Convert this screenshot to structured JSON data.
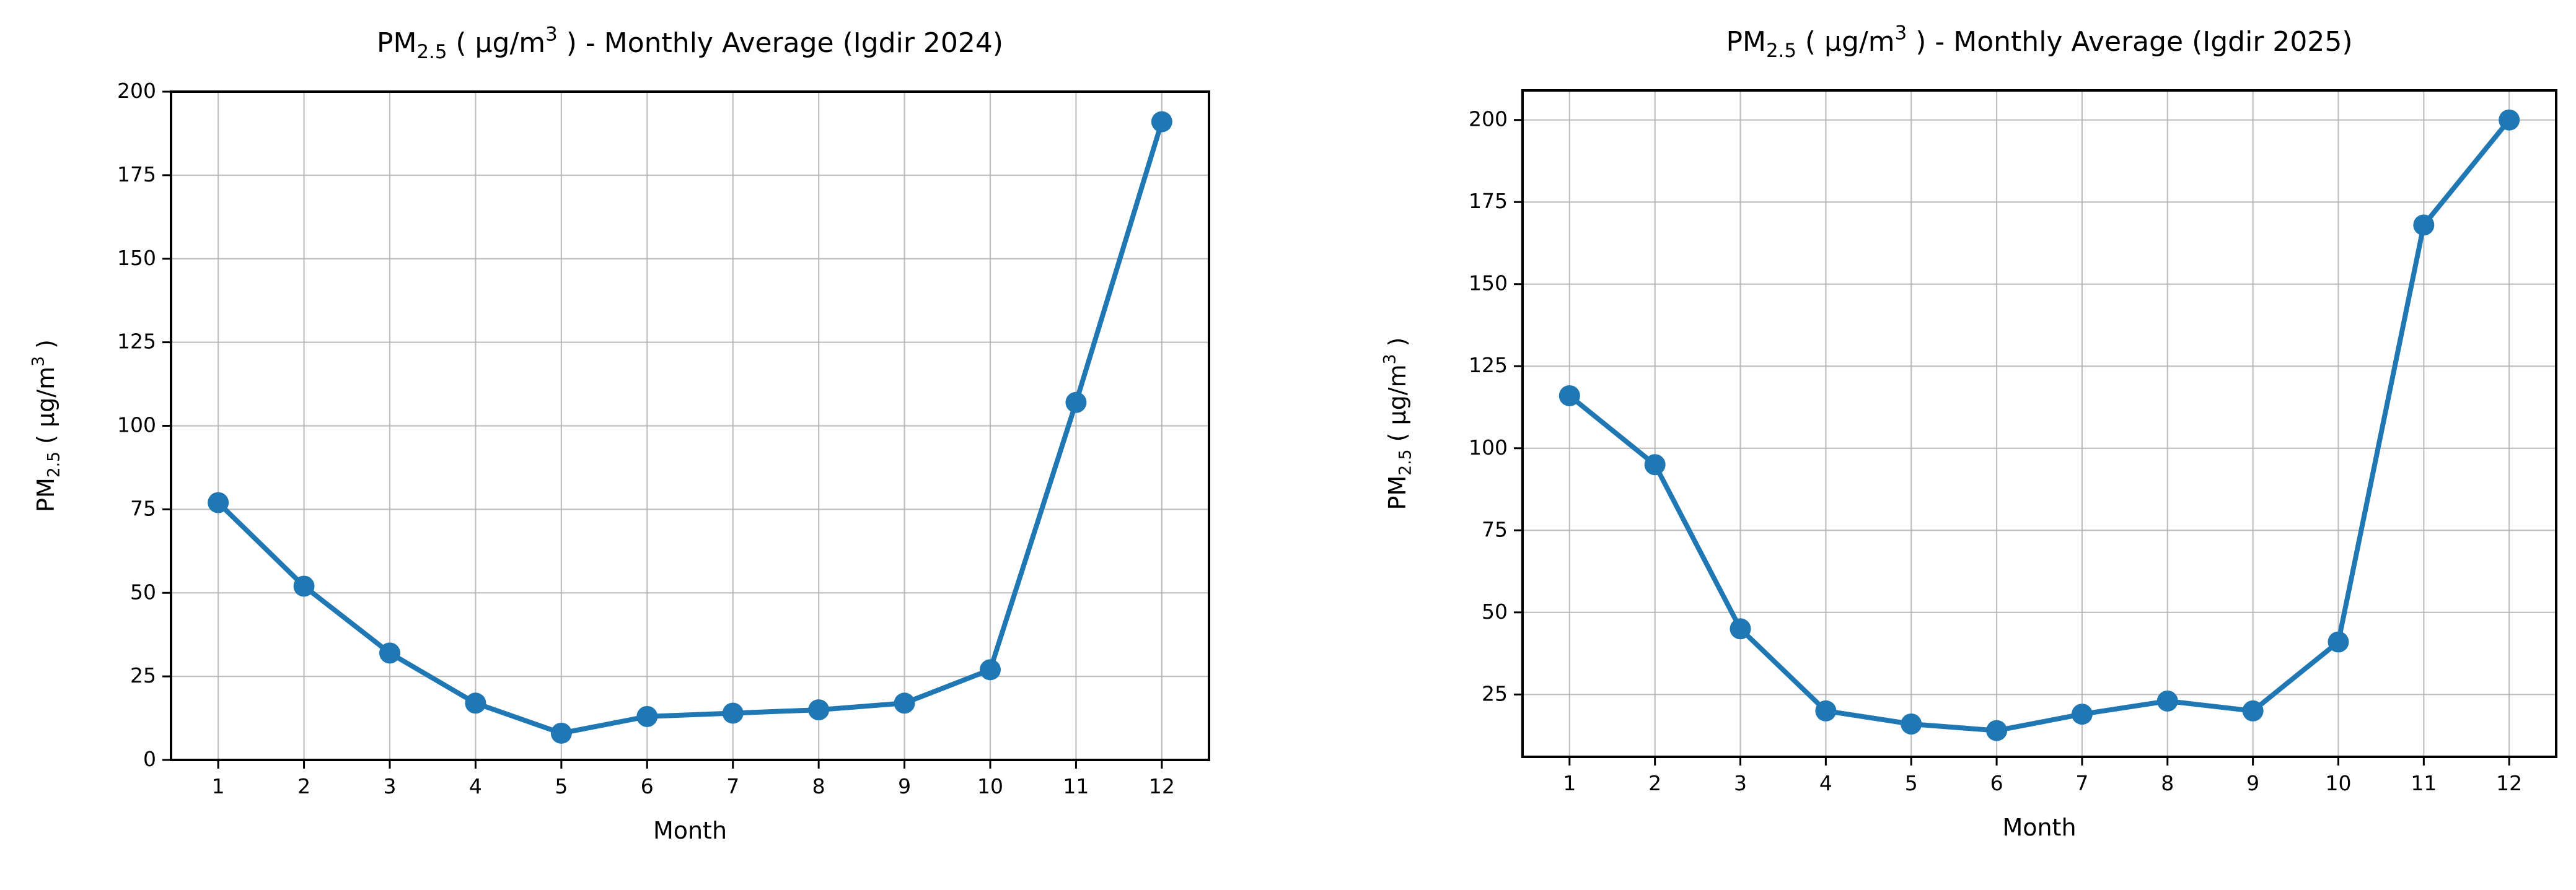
{
  "chart_data": [
    {
      "type": "line",
      "title": "PM2.5 ( µg/m3 ) - Monthly Average (Igdir 2024)",
      "xlabel": "Month",
      "ylabel": "PM2.5 ( µg/m3 )",
      "x": [
        1,
        2,
        3,
        4,
        5,
        6,
        7,
        8,
        9,
        10,
        11,
        12
      ],
      "values": [
        77,
        52,
        32,
        17,
        8,
        13,
        14,
        15,
        17,
        27,
        107,
        191
      ],
      "color": "#1f77b4",
      "xlim": [
        0.45,
        12.55
      ],
      "xticks": [
        1,
        2,
        3,
        4,
        5,
        6,
        7,
        8,
        9,
        10,
        11,
        12
      ],
      "ylim": [
        0,
        200
      ],
      "yticks": [
        0,
        25,
        50,
        75,
        100,
        125,
        150,
        175,
        200
      ],
      "grid": true
    },
    {
      "type": "line",
      "title": "PM2.5 ( µg/m3 ) - Monthly Average (Igdir 2025)",
      "xlabel": "Month",
      "ylabel": "PM2.5 ( µg/m3 )",
      "x": [
        1,
        2,
        3,
        4,
        5,
        6,
        7,
        8,
        9,
        10,
        11,
        12
      ],
      "values": [
        116,
        95,
        45,
        20,
        16,
        14,
        19,
        23,
        20,
        41,
        168,
        200
      ],
      "color": "#1f77b4",
      "xlim": [
        0.45,
        12.55
      ],
      "xticks": [
        1,
        2,
        3,
        4,
        5,
        6,
        7,
        8,
        9,
        10,
        11,
        12
      ],
      "ylim": [
        6,
        209
      ],
      "yticks": [
        25,
        50,
        75,
        100,
        125,
        150,
        175,
        200
      ],
      "grid": true
    }
  ]
}
